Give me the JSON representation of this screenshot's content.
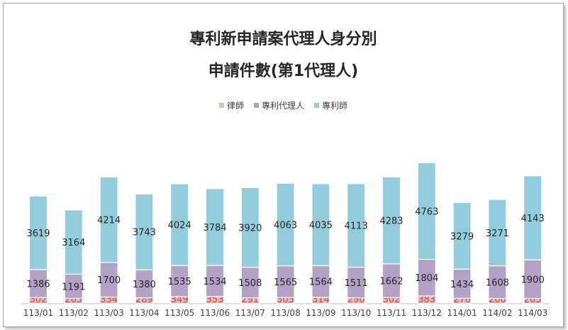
{
  "chart_data": {
    "type": "bar",
    "stacked": true,
    "title": "專利新申請案代理人身分別",
    "subtitle": "申請件數(第1代理人)",
    "xlabel": "",
    "ylabel": "",
    "legend_position": "top",
    "grid": false,
    "categories": [
      "113/01",
      "113/02",
      "113/03",
      "113/04",
      "113/05",
      "113/06",
      "113/07",
      "113/08",
      "113/09",
      "113/10",
      "113/11",
      "113/12",
      "114/01",
      "114/02",
      "114/03"
    ],
    "series": [
      {
        "name": "律師",
        "color": "#e6b9b8",
        "values": [
          302,
          265,
          334,
          289,
          349,
          353,
          291,
          303,
          314,
          290,
          302,
          383,
          270,
          260,
          263
        ]
      },
      {
        "name": "專利代理人",
        "color": "#b3a2c7",
        "values": [
          1386,
          1191,
          1700,
          1380,
          1535,
          1534,
          1508,
          1565,
          1564,
          1511,
          1662,
          1804,
          1434,
          1608,
          1900
        ]
      },
      {
        "name": "專利師",
        "color": "#93cddd",
        "values": [
          3619,
          3164,
          4214,
          3743,
          4024,
          3784,
          3920,
          4063,
          4035,
          4113,
          4283,
          4763,
          3279,
          3271,
          4143
        ]
      }
    ]
  }
}
